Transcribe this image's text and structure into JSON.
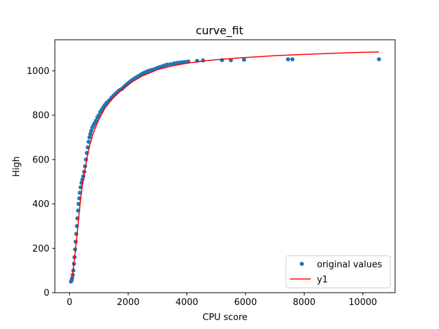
{
  "chart_data": {
    "type": "scatter",
    "title": "curve_fit",
    "xlabel": "CPU score",
    "ylabel": "High",
    "xlim": [
      -500,
      11100
    ],
    "ylim": [
      0,
      1140
    ],
    "xticks": [
      0,
      2000,
      4000,
      6000,
      8000,
      10000
    ],
    "yticks": [
      0,
      200,
      400,
      600,
      800,
      1000
    ],
    "grid": false,
    "legend_position": "lower right",
    "series": [
      {
        "name": "original values",
        "kind": "points",
        "color": "#1f77b4",
        "x": [
          50,
          70,
          90,
          110,
          130,
          150,
          170,
          190,
          210,
          230,
          250,
          270,
          290,
          310,
          330,
          350,
          380,
          410,
          440,
          470,
          500,
          530,
          560,
          590,
          620,
          650,
          680,
          710,
          740,
          780,
          820,
          860,
          900,
          950,
          1000,
          1050,
          1100,
          1150,
          1200,
          1260,
          1320,
          1380,
          1440,
          1500,
          1560,
          1620,
          1680,
          1740,
          1800,
          1860,
          1920,
          1980,
          2040,
          2100,
          2160,
          2220,
          2280,
          2340,
          2400,
          2460,
          2520,
          2580,
          2640,
          2700,
          2780,
          2860,
          2940,
          3020,
          3100,
          3180,
          3260,
          3340,
          3450,
          3560,
          3650,
          3740,
          3850,
          3950,
          4050,
          4350,
          4550,
          5200,
          5500,
          5950,
          7450,
          7600,
          10550
        ],
        "y": [
          50,
          55,
          65,
          80,
          100,
          130,
          160,
          195,
          230,
          265,
          300,
          335,
          370,
          400,
          425,
          450,
          475,
          495,
          510,
          525,
          545,
          570,
          600,
          630,
          655,
          680,
          700,
          715,
          730,
          745,
          755,
          765,
          775,
          790,
          800,
          815,
          825,
          835,
          845,
          855,
          862,
          870,
          880,
          888,
          895,
          902,
          910,
          915,
          920,
          928,
          935,
          942,
          948,
          955,
          960,
          966,
          970,
          975,
          980,
          985,
          990,
          993,
          996,
          1000,
          1003,
          1006,
          1010,
          1014,
          1018,
          1021,
          1025,
          1028,
          1030,
          1033,
          1035,
          1037,
          1039,
          1040,
          1042,
          1045,
          1047,
          1048,
          1048,
          1050,
          1052,
          1052,
          1052
        ]
      },
      {
        "name": "y1",
        "kind": "line",
        "color": "#ff0000",
        "x": [
          50,
          100,
          150,
          200,
          250,
          300,
          350,
          400,
          450,
          500,
          600,
          700,
          800,
          900,
          1000,
          1200,
          1400,
          1600,
          1800,
          2000,
          2200,
          2500,
          3000,
          3500,
          4000,
          4500,
          5000,
          6000,
          7000,
          8000,
          9000,
          10000,
          10550
        ],
        "y": [
          55,
          80,
          130,
          190,
          255,
          320,
          385,
          445,
          495,
          535,
          610,
          670,
          715,
          750,
          780,
          830,
          865,
          893,
          918,
          938,
          955,
          978,
          1005,
          1022,
          1034,
          1043,
          1050,
          1060,
          1068,
          1074,
          1079,
          1083,
          1085
        ]
      }
    ]
  }
}
